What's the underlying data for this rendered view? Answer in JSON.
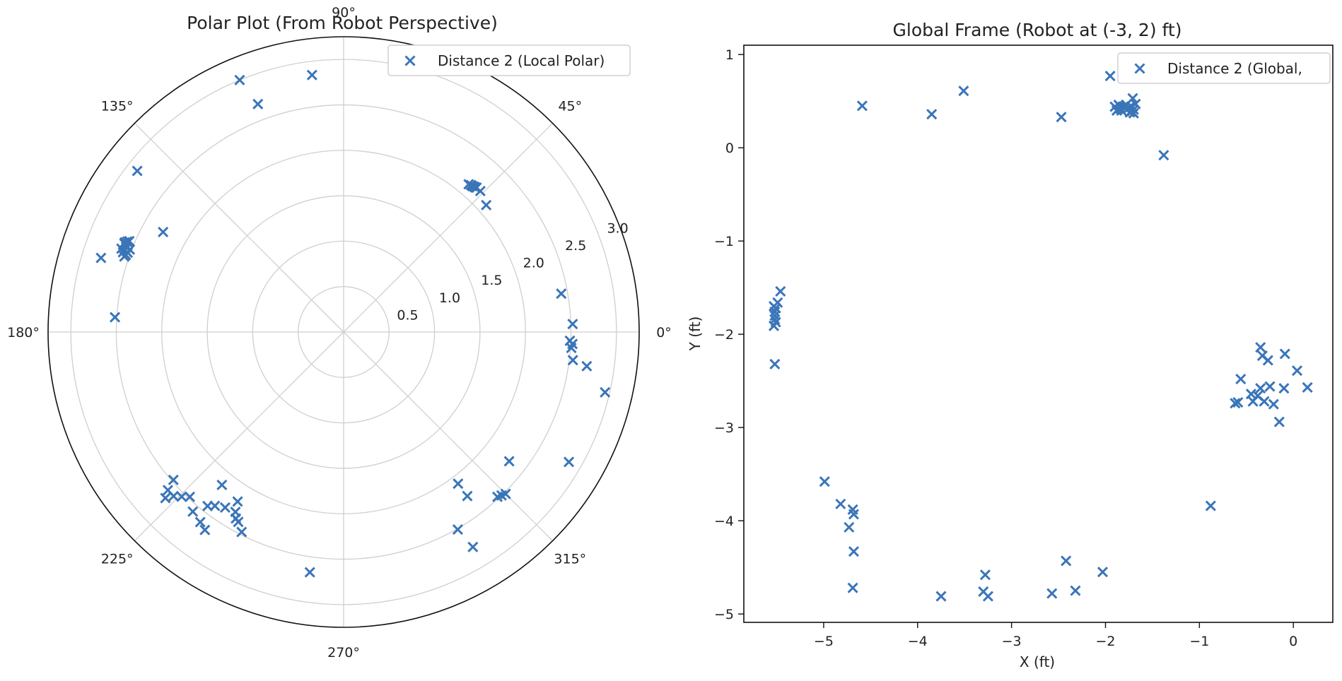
{
  "colors": {
    "marker": "#3A75B8",
    "grid": "#cfcfcf",
    "axis": "#111111"
  },
  "chart_data": [
    {
      "type": "scatter",
      "projection": "polar",
      "title": "Polar Plot (From Robot Perspective)",
      "theta_ticks": [
        0,
        45,
        90,
        135,
        180,
        225,
        270,
        315
      ],
      "theta_tick_labels": [
        "0°",
        "45°",
        "90°",
        "135°",
        "180°",
        "225°",
        "270°",
        "315°"
      ],
      "r_ticks": [
        0.5,
        1.0,
        1.5,
        2.0,
        2.5,
        3.0
      ],
      "r_tick_labels": [
        "0.5",
        "1.0",
        "1.5",
        "2.0",
        "2.5",
        "3.0"
      ],
      "rlim": [
        0,
        3.25
      ],
      "r_label_angle_deg": 22.5,
      "grid": true,
      "legend_position": "top-right",
      "series": [
        {
          "name": "Distance 2 (Local Polar)",
          "marker": "x",
          "theta_deg": [
            45.9,
            47.4,
            47.7,
            48.1,
            48.6,
            49.1,
            49.8,
            41.7,
            112.4,
            110.6,
            97.0,
            151.0,
            142.0,
            163.0,
            161.0,
            160.1,
            159.4,
            158.6,
            158.0,
            157.3,
            160.5,
            159.8,
            158.9,
            157.7,
            157.0,
            176.3,
            10.0,
            2.0,
            -3.0,
            -2.2,
            -4.0,
            -8.0,
            -13.0,
            -7.0,
            -30.0,
            -38.0,
            -45.0,
            -46.0,
            -47.0,
            -53.0,
            -59.0,
            -60.0,
            -53.0,
            -98.0,
            -125.0,
            -127.0,
            -128.0,
            -130.0,
            -133.0,
            -136.0,
            -137.0,
            -138.0,
            -139.0,
            -128.5,
            -134.5,
            -122.0,
            -117.0,
            -124.0,
            -120.0,
            -119.0,
            -121.0,
            -126.5
          ],
          "r": [
            2.16,
            2.16,
            2.15,
            2.15,
            2.14,
            2.14,
            2.13,
            2.1,
            3.0,
            2.68,
            2.85,
            2.27,
            2.88,
            2.79,
            2.55,
            2.58,
            2.61,
            2.57,
            2.6,
            2.58,
            2.54,
            2.53,
            2.52,
            2.6,
            2.56,
            2.52,
            2.43,
            2.52,
            2.52,
            2.49,
            2.51,
            2.7,
            2.95,
            2.54,
            2.86,
            2.31,
            2.52,
            2.5,
            2.48,
            2.26,
            2.76,
            2.51,
            2.09,
            2.67,
            2.66,
            2.62,
            2.43,
            2.58,
            2.48,
            2.6,
            2.68,
            2.6,
            2.48,
            2.15,
            2.54,
            2.2,
            2.47,
            2.33,
            2.37,
            2.39,
            2.31,
            2.38
          ]
        }
      ]
    },
    {
      "type": "scatter",
      "title": "Global Frame (Robot at (-3, 2) ft)",
      "xlabel": "X (ft)",
      "ylabel": "Y (ft)",
      "xlim": [
        -5.85,
        0.42
      ],
      "ylim": [
        -5.09,
        1.1
      ],
      "x_ticks": [
        -5,
        -4,
        -3,
        -2,
        -1,
        0
      ],
      "x_tick_labels": [
        "−5",
        "−4",
        "−3",
        "−2",
        "−1",
        "0"
      ],
      "y_ticks": [
        1,
        0,
        -1,
        -2,
        -3,
        -4,
        -5
      ],
      "y_tick_labels": [
        "1",
        "0",
        "−1",
        "−2",
        "−3",
        "−4",
        "−5"
      ],
      "grid": false,
      "legend_position": "top-right",
      "series": [
        {
          "name": "Distance 2 (Global,",
          "marker": "x",
          "x": [
            -4.59,
            -3.85,
            -3.51,
            -2.47,
            -1.95,
            -1.38,
            -1.71,
            -1.9,
            -1.87,
            -1.85,
            -1.83,
            -1.8,
            -1.78,
            -1.76,
            -1.74,
            -1.72,
            -1.7,
            -1.68,
            -1.88,
            -1.84,
            -1.79,
            -1.75,
            -1.72,
            -1.7,
            -1.86,
            -1.81,
            -5.46,
            -5.49,
            -5.51,
            -5.52,
            -5.52,
            -5.52,
            -5.51,
            -5.53,
            -5.53,
            -5.52,
            -0.35,
            -0.09,
            -0.33,
            -0.27,
            0.04,
            -0.56,
            -0.25,
            -0.35,
            -0.45,
            -0.38,
            -0.31,
            -0.1,
            0.15,
            -0.59,
            -0.43,
            -0.21,
            -0.15,
            -0.62,
            -0.88,
            -4.99,
            -4.82,
            -4.69,
            -4.68,
            -4.73,
            -4.68,
            -4.69,
            -3.75,
            -3.28,
            -3.3,
            -3.25,
            -2.57,
            -2.42,
            -2.32,
            -2.03
          ],
          "y": [
            0.45,
            0.36,
            0.61,
            0.33,
            0.77,
            -0.08,
            0.53,
            0.44,
            0.41,
            0.45,
            0.4,
            0.43,
            0.46,
            0.42,
            0.38,
            0.44,
            0.41,
            0.47,
            0.4,
            0.42,
            0.45,
            0.43,
            0.39,
            0.37,
            0.46,
            0.44,
            -1.54,
            -1.66,
            -1.72,
            -1.76,
            -1.8,
            -1.84,
            -1.87,
            -1.91,
            -1.7,
            -2.32,
            -2.14,
            -2.21,
            -2.23,
            -2.28,
            -2.39,
            -2.48,
            -2.56,
            -2.58,
            -2.64,
            -2.66,
            -2.72,
            -2.58,
            -2.57,
            -2.73,
            -2.72,
            -2.75,
            -2.94,
            -2.74,
            -3.84,
            -3.58,
            -3.82,
            -3.88,
            -3.93,
            -4.07,
            -4.33,
            -4.72,
            -4.81,
            -4.58,
            -4.76,
            -4.81,
            -4.78,
            -4.43,
            -4.75,
            -4.55
          ]
        }
      ]
    }
  ]
}
